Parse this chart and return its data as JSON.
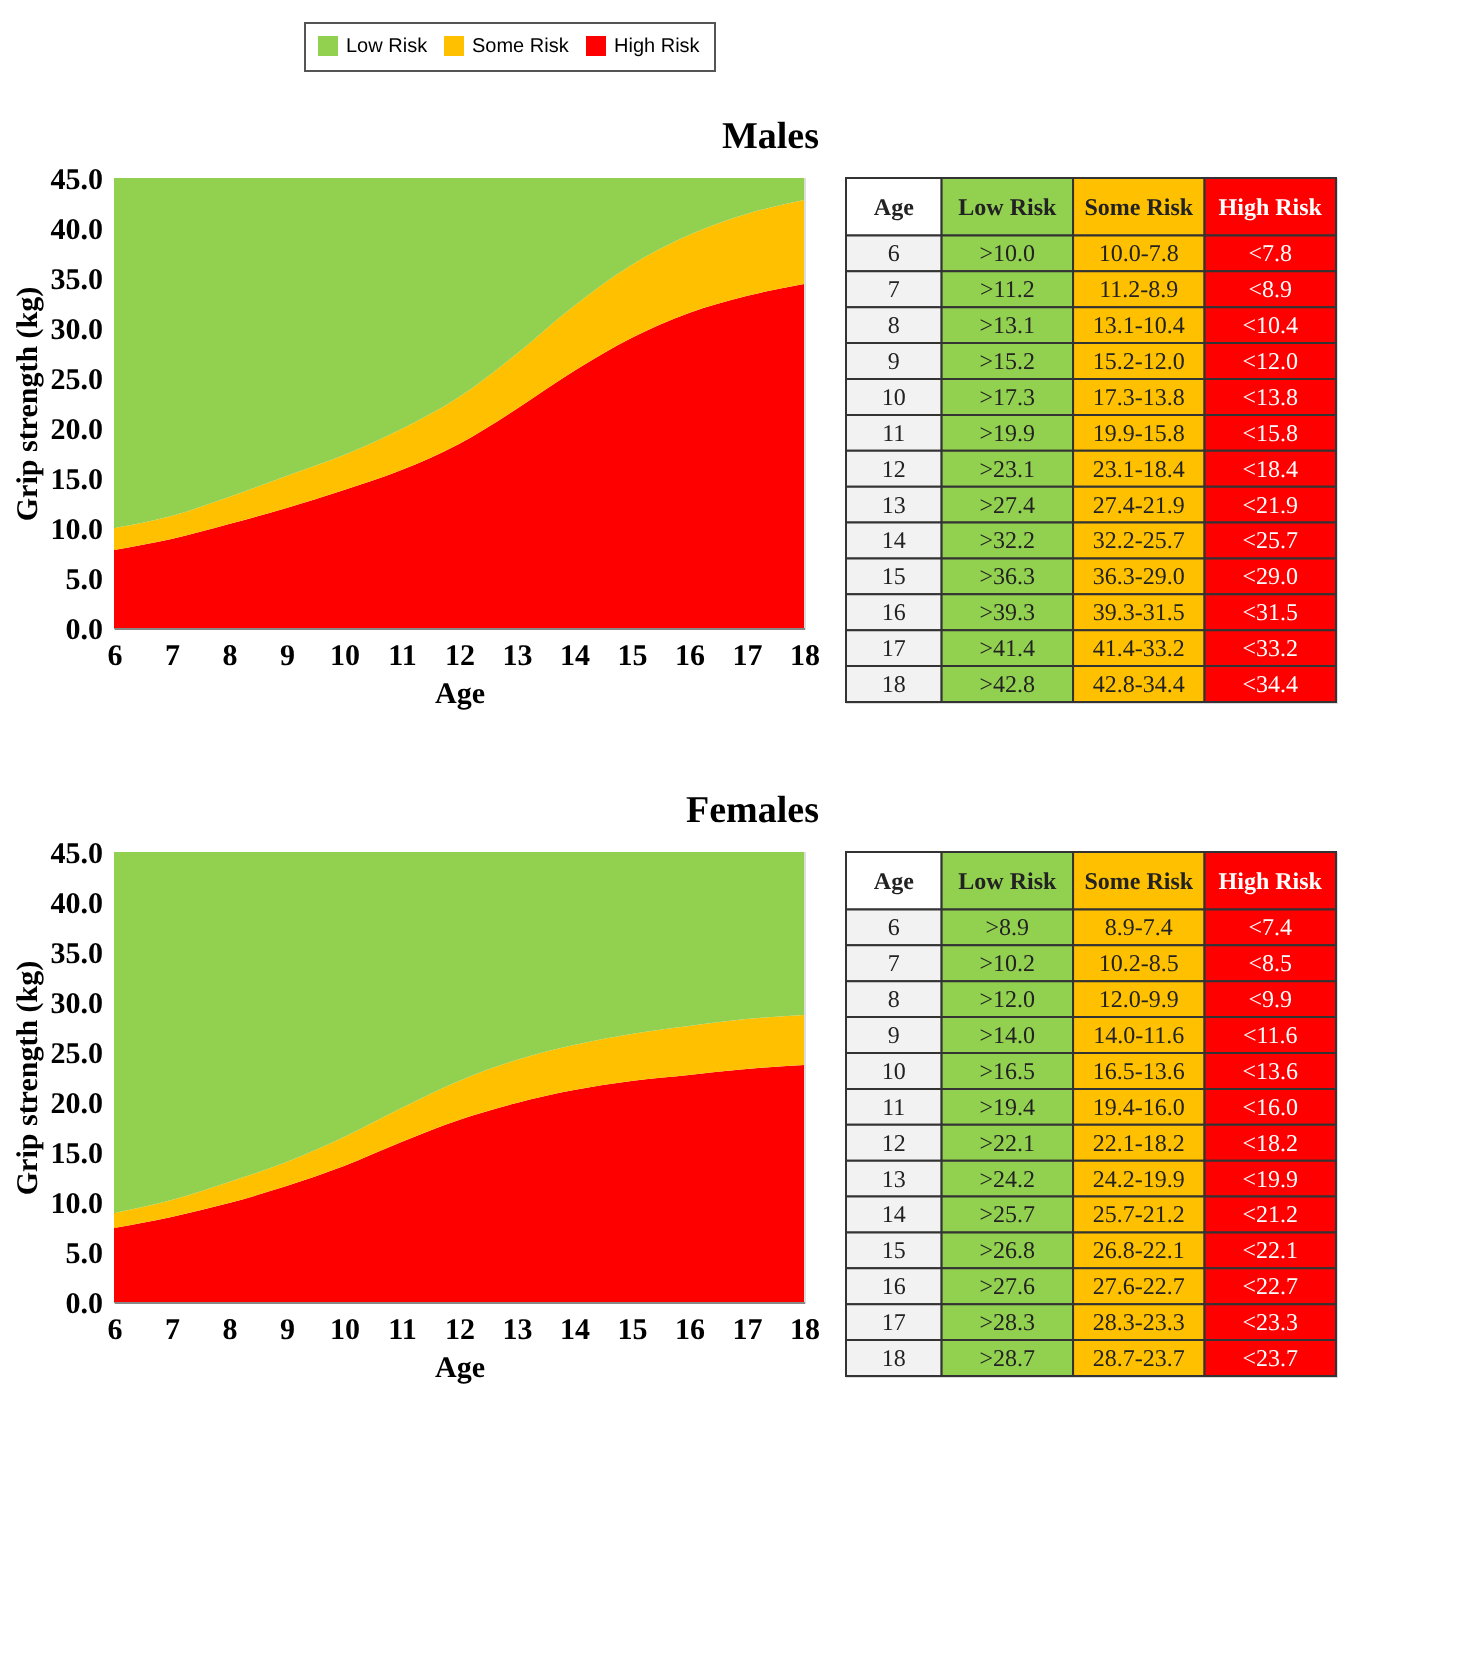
{
  "chart_data": [
    {
      "type": "area",
      "title": "Males",
      "xlabel": "Age",
      "ylabel": "Grip strength (kg)",
      "legend": "top right",
      "grid": false,
      "stacked": true,
      "x": [
        6,
        7,
        8,
        9,
        10,
        11,
        12,
        13,
        14,
        15,
        16,
        17,
        18
      ],
      "xlim": [
        6,
        18
      ],
      "xticks": [
        6,
        7,
        8,
        9,
        10,
        11,
        12,
        13,
        14,
        15,
        16,
        17,
        18
      ],
      "ylim": [
        0,
        45
      ],
      "yticks": [
        {
          "value": 0,
          "label": "0.0"
        },
        {
          "value": 5,
          "label": "5.0"
        },
        {
          "value": 10,
          "label": "10.0"
        },
        {
          "value": 15,
          "label": "15.0"
        },
        {
          "value": 20,
          "label": "20.0"
        },
        {
          "value": 25,
          "label": "25.0"
        },
        {
          "value": 30,
          "label": "30.0"
        },
        {
          "value": 35,
          "label": "35.0"
        },
        {
          "value": 40,
          "label": "40.0"
        },
        {
          "value": 45,
          "label": "45.0"
        }
      ],
      "series": [
        {
          "name": "High Risk",
          "color": "#ff0000",
          "values": [
            7.8,
            8.9,
            10.4,
            12.0,
            13.8,
            15.8,
            18.4,
            21.9,
            25.7,
            29.0,
            31.5,
            33.2,
            34.4
          ]
        },
        {
          "name": "Some Risk",
          "color": "#ffc000",
          "values": [
            2.2,
            2.3,
            2.7,
            3.2,
            3.5,
            4.1,
            4.7,
            5.5,
            6.5,
            7.3,
            7.8,
            8.2,
            8.4
          ]
        },
        {
          "name": "Low Risk",
          "color": "#92d050",
          "values": [
            35.0,
            33.8,
            31.9,
            29.8,
            27.7,
            25.1,
            21.9,
            17.6,
            12.8,
            8.7,
            5.7,
            3.6,
            2.2
          ]
        }
      ],
      "annotations": [
        "Age",
        "Low Risk",
        "Some Risk",
        "High Risk",
        "6",
        ">10.0",
        "10.0-7.8",
        "<7.8",
        "7",
        ">11.2",
        "11.2-8.9",
        "<8.9",
        "8",
        ">13.1",
        "13.1-10.4",
        "<10.4",
        "9",
        ">15.2",
        "15.2-12.0",
        "<12.0",
        "10",
        ">17.3",
        "17.3-13.8",
        "<13.8",
        "11",
        ">19.9",
        "19.9-15.8",
        "<15.8",
        "12",
        ">23.1",
        "23.1-18.4",
        "<18.4",
        "13",
        ">27.4",
        "27.4-21.9",
        "<21.9",
        "14",
        ">32.2",
        "32.2-25.7",
        "<25.7",
        "15",
        ">36.3",
        "36.3-29.0",
        "<29.0",
        "16",
        ">39.3",
        "39.3-31.5",
        "<31.5",
        "17",
        ">41.4",
        "41.4-33.2",
        "<33.2",
        "18",
        ">42.8",
        "42.8-34.4",
        "<34.4"
      ]
    },
    {
      "type": "area",
      "title": "Females",
      "xlabel": "Age",
      "ylabel": "Grip strength (kg)",
      "grid": false,
      "stacked": true,
      "x": [
        6,
        7,
        8,
        9,
        10,
        11,
        12,
        13,
        14,
        15,
        16,
        17,
        18
      ],
      "xlim": [
        6,
        18
      ],
      "xticks": [
        6,
        7,
        8,
        9,
        10,
        11,
        12,
        13,
        14,
        15,
        16,
        17,
        18
      ],
      "ylim": [
        0,
        45
      ],
      "yticks": [
        {
          "value": 0,
          "label": "0.0"
        },
        {
          "value": 5,
          "label": "5.0"
        },
        {
          "value": 10,
          "label": "10.0"
        },
        {
          "value": 15,
          "label": "15.0"
        },
        {
          "value": 20,
          "label": "20.0"
        },
        {
          "value": 25,
          "label": "25.0"
        },
        {
          "value": 30,
          "label": "30.0"
        },
        {
          "value": 35,
          "label": "35.0"
        },
        {
          "value": 40,
          "label": "40.0"
        },
        {
          "value": 45,
          "label": "45.0"
        }
      ],
      "series": [
        {
          "color": "#ff0000",
          "values": [
            7.4,
            8.5,
            9.9,
            11.6,
            13.6,
            16.0,
            18.2,
            19.9,
            21.2,
            22.1,
            22.7,
            23.3,
            23.7
          ]
        },
        {
          "color": "#ffc000",
          "values": [
            1.5,
            1.7,
            2.1,
            2.4,
            2.9,
            3.4,
            3.9,
            4.3,
            4.5,
            4.7,
            4.9,
            5.0,
            5.0
          ]
        },
        {
          "color": "#92d050",
          "values": [
            36.1,
            34.8,
            33.0,
            31.0,
            28.5,
            25.6,
            22.9,
            20.8,
            19.3,
            18.2,
            17.4,
            16.7,
            16.3
          ]
        }
      ],
      "annotations": [
        "Age",
        "Low Risk",
        "Some Risk",
        "High Risk",
        "6",
        ">8.9",
        "8.9-7.4",
        "<7.4",
        "7",
        ">10.2",
        "10.2-8.5",
        "<8.5",
        "8",
        ">12.0",
        "12.0-9.9",
        "<9.9",
        "9",
        ">14.0",
        "14.0-11.6",
        "<11.6",
        "10",
        ">16.5",
        "16.5-13.6",
        "<13.6",
        "11",
        ">19.4",
        "19.4-16.0",
        "<16.0",
        "12",
        ">22.1",
        "22.1-18.2",
        "<18.2",
        "13",
        ">24.2",
        "24.2-19.9",
        "<19.9",
        "14",
        ">25.7",
        "25.7-21.2",
        "<21.2",
        "15",
        ">26.8",
        "26.8-22.1",
        "<22.1",
        "16",
        ">27.6",
        "27.6-22.7",
        "<22.7",
        "17",
        ">28.3",
        "28.3-23.3",
        "<23.3",
        "18",
        ">28.7",
        "28.7-23.7",
        "<23.7"
      ]
    }
  ]
}
